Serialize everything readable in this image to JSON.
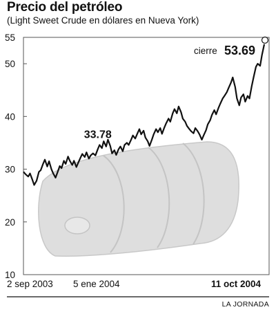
{
  "chart_data": {
    "type": "line",
    "title": "Precio del petróleo",
    "subtitle": "(Light Sweet Crude en dólares en Nueva York)",
    "ylim": [
      10,
      55
    ],
    "yticks": [
      10,
      20,
      30,
      40,
      50,
      55
    ],
    "x_labels": [
      "2 sep 2003",
      "5 ene 2004",
      "11 oct 2004"
    ],
    "x_range": [
      "2003-09-02",
      "2004-10-11"
    ],
    "annotations": [
      {
        "label": "33.78",
        "x": "2004-01-05",
        "y": 33.78
      },
      {
        "prefix": "cierre",
        "label": "53.69",
        "x": "2004-10-11",
        "y": 53.69
      }
    ],
    "series": [
      {
        "points": [
          [
            "2003-09-02",
            29.5
          ],
          [
            "2003-09-06",
            29.0
          ],
          [
            "2003-09-10",
            28.6
          ],
          [
            "2003-09-13",
            29.2
          ],
          [
            "2003-09-17",
            28.0
          ],
          [
            "2003-09-20",
            27.0
          ],
          [
            "2003-09-24",
            27.8
          ],
          [
            "2003-09-28",
            29.5
          ],
          [
            "2003-10-01",
            29.8
          ],
          [
            "2003-10-05",
            31.0
          ],
          [
            "2003-10-08",
            31.8
          ],
          [
            "2003-10-12",
            30.5
          ],
          [
            "2003-10-15",
            31.5
          ],
          [
            "2003-10-19",
            30.0
          ],
          [
            "2003-10-22",
            29.2
          ],
          [
            "2003-10-26",
            28.4
          ],
          [
            "2003-10-29",
            29.3
          ],
          [
            "2003-11-02",
            30.6
          ],
          [
            "2003-11-05",
            30.2
          ],
          [
            "2003-11-09",
            31.6
          ],
          [
            "2003-11-12",
            31.0
          ],
          [
            "2003-11-16",
            32.4
          ],
          [
            "2003-11-19",
            31.6
          ],
          [
            "2003-11-23",
            30.8
          ],
          [
            "2003-11-26",
            31.6
          ],
          [
            "2003-11-30",
            30.4
          ],
          [
            "2003-12-03",
            31.2
          ],
          [
            "2003-12-07",
            32.2
          ],
          [
            "2003-12-10",
            32.9
          ],
          [
            "2003-12-14",
            32.3
          ],
          [
            "2003-12-17",
            33.2
          ],
          [
            "2003-12-21",
            32.0
          ],
          [
            "2003-12-24",
            32.6
          ],
          [
            "2003-12-28",
            33.0
          ],
          [
            "2004-01-01",
            32.6
          ],
          [
            "2004-01-05",
            33.78
          ],
          [
            "2004-01-08",
            34.6
          ],
          [
            "2004-01-12",
            34.0
          ],
          [
            "2004-01-15",
            35.3
          ],
          [
            "2004-01-19",
            34.3
          ],
          [
            "2004-01-22",
            35.6
          ],
          [
            "2004-01-26",
            34.4
          ],
          [
            "2004-01-29",
            33.0
          ],
          [
            "2004-02-02",
            33.6
          ],
          [
            "2004-02-05",
            32.7
          ],
          [
            "2004-02-09",
            33.8
          ],
          [
            "2004-02-12",
            34.3
          ],
          [
            "2004-02-16",
            33.4
          ],
          [
            "2004-02-19",
            34.6
          ],
          [
            "2004-02-23",
            35.0
          ],
          [
            "2004-02-26",
            34.6
          ],
          [
            "2004-03-01",
            35.6
          ],
          [
            "2004-03-04",
            36.4
          ],
          [
            "2004-03-08",
            35.8
          ],
          [
            "2004-03-11",
            36.6
          ],
          [
            "2004-03-15",
            37.6
          ],
          [
            "2004-03-18",
            36.6
          ],
          [
            "2004-03-22",
            37.3
          ],
          [
            "2004-03-25",
            36.0
          ],
          [
            "2004-03-29",
            35.3
          ],
          [
            "2004-04-01",
            34.4
          ],
          [
            "2004-04-05",
            35.6
          ],
          [
            "2004-04-08",
            36.6
          ],
          [
            "2004-04-12",
            37.6
          ],
          [
            "2004-04-15",
            37.0
          ],
          [
            "2004-04-19",
            37.8
          ],
          [
            "2004-04-22",
            36.7
          ],
          [
            "2004-04-26",
            37.9
          ],
          [
            "2004-04-29",
            38.7
          ],
          [
            "2004-05-03",
            39.6
          ],
          [
            "2004-05-06",
            39.0
          ],
          [
            "2004-05-10",
            40.6
          ],
          [
            "2004-05-13",
            41.4
          ],
          [
            "2004-05-17",
            40.6
          ],
          [
            "2004-05-20",
            41.9
          ],
          [
            "2004-05-24",
            40.8
          ],
          [
            "2004-05-27",
            39.6
          ],
          [
            "2004-05-31",
            39.0
          ],
          [
            "2004-06-03",
            38.2
          ],
          [
            "2004-06-07",
            37.6
          ],
          [
            "2004-06-10",
            37.2
          ],
          [
            "2004-06-14",
            36.8
          ],
          [
            "2004-06-17",
            37.8
          ],
          [
            "2004-06-21",
            37.2
          ],
          [
            "2004-06-24",
            36.6
          ],
          [
            "2004-06-28",
            35.6
          ],
          [
            "2004-07-01",
            36.4
          ],
          [
            "2004-07-05",
            37.4
          ],
          [
            "2004-07-08",
            38.5
          ],
          [
            "2004-07-12",
            39.3
          ],
          [
            "2004-07-15",
            40.3
          ],
          [
            "2004-07-19",
            41.2
          ],
          [
            "2004-07-22",
            40.4
          ],
          [
            "2004-07-26",
            41.6
          ],
          [
            "2004-07-29",
            42.4
          ],
          [
            "2004-08-02",
            43.4
          ],
          [
            "2004-08-05",
            43.9
          ],
          [
            "2004-08-09",
            44.6
          ],
          [
            "2004-08-12",
            45.4
          ],
          [
            "2004-08-16",
            46.4
          ],
          [
            "2004-08-19",
            47.4
          ],
          [
            "2004-08-23",
            45.6
          ],
          [
            "2004-08-26",
            43.4
          ],
          [
            "2004-08-30",
            42.1
          ],
          [
            "2004-09-02",
            43.6
          ],
          [
            "2004-09-06",
            44.2
          ],
          [
            "2004-09-09",
            42.8
          ],
          [
            "2004-09-13",
            43.9
          ],
          [
            "2004-09-16",
            43.4
          ],
          [
            "2004-09-20",
            45.8
          ],
          [
            "2004-09-23",
            47.4
          ],
          [
            "2004-09-27",
            49.4
          ],
          [
            "2004-09-30",
            50.0
          ],
          [
            "2004-10-04",
            49.6
          ],
          [
            "2004-10-07",
            51.6
          ],
          [
            "2004-10-11",
            53.69
          ]
        ]
      }
    ]
  },
  "credit": "LA JORNADA",
  "colors": {
    "line": "#111111",
    "barrel": "#dedede",
    "barrel_edge": "#c4c4c4",
    "frame": "#555555"
  }
}
